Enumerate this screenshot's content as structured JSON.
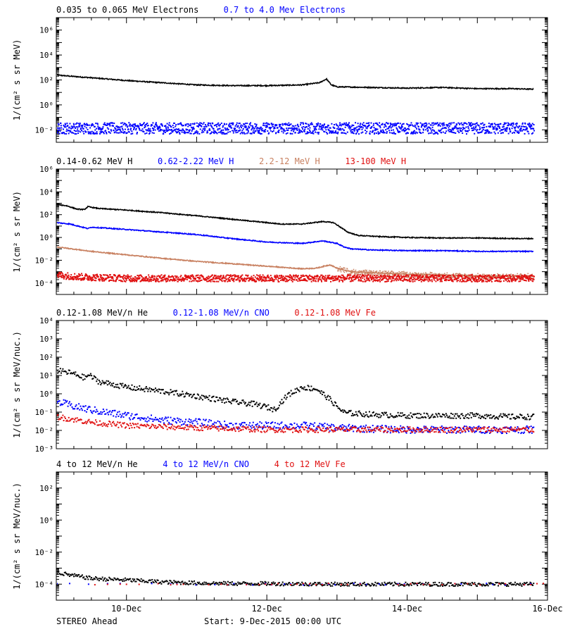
{
  "colors": {
    "black": "#000000",
    "blue": "#0000ff",
    "tan": "#c88060",
    "red": "#e01010"
  },
  "xaxis": {
    "ticks": [
      {
        "day": 1,
        "label": "10-Dec"
      },
      {
        "day": 3,
        "label": "12-Dec"
      },
      {
        "day": 5,
        "label": "14-Dec"
      },
      {
        "day": 7,
        "label": "16-Dec"
      }
    ]
  },
  "footer": {
    "spacecraft": "STEREO Ahead",
    "start": "Start:  9-Dec-2015 00:00 UTC"
  },
  "chart_data": [
    {
      "type": "scatter",
      "ylabel": "1/(cm² s sr MeV)",
      "ylim_log10": [
        -3,
        7
      ],
      "yticks": [
        {
          "e": -2,
          "label": "10⁻²"
        },
        {
          "e": 0,
          "label": "10⁰"
        },
        {
          "e": 2,
          "label": "10²"
        },
        {
          "e": 4,
          "label": "10⁴"
        },
        {
          "e": 6,
          "label": "10⁶"
        }
      ],
      "xlim_days": [
        0,
        7
      ],
      "series": [
        {
          "name": "0.035 to 0.065 MeV Electrons",
          "color": "black",
          "style": "line",
          "x": [
            0,
            0.2,
            0.5,
            1.0,
            1.5,
            2.0,
            2.5,
            3.0,
            3.5,
            3.75,
            3.85,
            3.92,
            4.0,
            4.5,
            5.0,
            5.5,
            6.0,
            6.5,
            6.8
          ],
          "y": [
            250,
            200,
            150,
            90,
            60,
            40,
            35,
            35,
            40,
            60,
            120,
            40,
            28,
            25,
            22,
            25,
            20,
            20,
            18
          ]
        },
        {
          "name": "0.7 to 4.0 Mev Electrons",
          "color": "blue",
          "style": "scatter-noise",
          "spread": 0.45,
          "x": [
            0,
            1,
            2,
            3,
            4,
            5,
            6,
            6.8
          ],
          "y": [
            0.015,
            0.015,
            0.015,
            0.015,
            0.015,
            0.015,
            0.015,
            0.015
          ]
        }
      ]
    },
    {
      "type": "scatter",
      "ylabel": "1/(cm² s sr MeV)",
      "ylim_log10": [
        -5,
        6
      ],
      "yticks": [
        {
          "e": -4,
          "label": "10⁻⁴"
        },
        {
          "e": -2,
          "label": "10⁻²"
        },
        {
          "e": 0,
          "label": "10⁰"
        },
        {
          "e": 2,
          "label": "10²"
        },
        {
          "e": 4,
          "label": "10⁴"
        },
        {
          "e": 6,
          "label": "10⁶"
        }
      ],
      "xlim_days": [
        0,
        7
      ],
      "series": [
        {
          "name": "0.14-0.62 MeV H",
          "color": "black",
          "style": "line",
          "x": [
            0,
            0.15,
            0.3,
            0.4,
            0.45,
            0.6,
            1.0,
            1.5,
            2.0,
            2.5,
            3.0,
            3.2,
            3.5,
            3.8,
            3.95,
            4.05,
            4.15,
            4.3,
            4.6,
            5.0,
            5.5,
            6.0,
            6.5,
            6.8
          ],
          "y": [
            800,
            600,
            300,
            280,
            500,
            350,
            250,
            150,
            80,
            40,
            20,
            15,
            15,
            25,
            20,
            8,
            3,
            1.5,
            1.2,
            1.0,
            0.9,
            0.9,
            0.8,
            0.8
          ]
        },
        {
          "name": "0.62-2.22 MeV H",
          "color": "blue",
          "style": "line",
          "x": [
            0,
            0.2,
            0.45,
            0.5,
            1.0,
            1.5,
            2.0,
            2.5,
            3.0,
            3.5,
            3.8,
            4.0,
            4.1,
            4.2,
            4.5,
            5.0,
            5.5,
            6.0,
            6.5,
            6.8
          ],
          "y": [
            20,
            15,
            6,
            8,
            5,
            3,
            1.8,
            0.8,
            0.4,
            0.3,
            0.5,
            0.3,
            0.15,
            0.1,
            0.08,
            0.07,
            0.07,
            0.06,
            0.06,
            0.06
          ]
        },
        {
          "name": "2.2-12 MeV H",
          "color": "tan",
          "style": "line",
          "x": [
            0,
            0.5,
            1.0,
            1.5,
            2.0,
            2.5,
            3.0,
            3.5,
            3.7,
            3.9,
            4.0,
            4.2,
            4.5,
            5.0,
            5.5,
            6.0,
            6.5,
            6.8
          ],
          "y": [
            0.15,
            0.06,
            0.03,
            0.015,
            0.008,
            0.005,
            0.003,
            0.0018,
            0.002,
            0.004,
            0.002,
            0.001,
            0.0008,
            0.0006,
            0.0005,
            0.0004,
            0.0004,
            0.0004
          ],
          "noise_after": 4.0,
          "spread": 0.25
        },
        {
          "name": "13-100 MeV H",
          "color": "red",
          "style": "scatter-noise",
          "spread": 0.3,
          "x": [
            0,
            0.3,
            1,
            2,
            3,
            4,
            5,
            6,
            6.8
          ],
          "y": [
            0.0006,
            0.0004,
            0.0003,
            0.0003,
            0.0003,
            0.0003,
            0.0003,
            0.0003,
            0.0003
          ]
        }
      ]
    },
    {
      "type": "scatter",
      "ylabel": "1/(cm² s sr MeV/nuc.)",
      "ylim_log10": [
        -3,
        4
      ],
      "yticks": [
        {
          "e": -3,
          "label": "10⁻³"
        },
        {
          "e": -2,
          "label": "10⁻²"
        },
        {
          "e": -1,
          "label": "10⁻¹"
        },
        {
          "e": 0,
          "label": "10⁰"
        },
        {
          "e": 1,
          "label": "10¹"
        },
        {
          "e": 2,
          "label": "10²"
        },
        {
          "e": 3,
          "label": "10³"
        },
        {
          "e": 4,
          "label": "10⁴"
        }
      ],
      "xlim_days": [
        0,
        7
      ],
      "series": [
        {
          "name": "0.12-1.08 MeV/n He",
          "color": "black",
          "style": "dots",
          "spread": 0.15,
          "x": [
            0,
            0.2,
            0.4,
            0.45,
            0.6,
            1.0,
            1.5,
            2.0,
            2.5,
            2.8,
            3.0,
            3.1,
            3.2,
            3.3,
            3.5,
            3.7,
            3.8,
            3.9,
            4.0,
            4.1,
            4.5,
            5.0,
            5.5,
            6.0,
            6.5,
            6.8
          ],
          "y": [
            20,
            15,
            8,
            12,
            5,
            2.5,
            1.5,
            0.8,
            0.4,
            0.3,
            0.2,
            0.15,
            0.4,
            1.0,
            2.5,
            2.0,
            1.0,
            0.5,
            0.2,
            0.1,
            0.08,
            0.07,
            0.07,
            0.07,
            0.06,
            0.06
          ]
        },
        {
          "name": "0.12-1.08 MeV/n CNO",
          "color": "blue",
          "style": "dots",
          "spread": 0.2,
          "x": [
            0,
            0.3,
            0.6,
            1.0,
            1.5,
            2.0,
            2.5,
            3.0,
            3.5,
            4.0,
            5.0,
            6.0,
            6.8
          ],
          "y": [
            0.4,
            0.2,
            0.12,
            0.07,
            0.04,
            0.03,
            0.02,
            0.02,
            0.02,
            0.015,
            0.012,
            0.012,
            0.012
          ]
        },
        {
          "name": "0.12-1.08 MeV Fe",
          "color": "red",
          "style": "dots",
          "spread": 0.15,
          "x": [
            0,
            0.5,
            1.0,
            2.0,
            3.0,
            4.0,
            5.0,
            6.0,
            6.8
          ],
          "y": [
            0.06,
            0.03,
            0.02,
            0.015,
            0.012,
            0.012,
            0.012,
            0.012,
            0.012
          ]
        }
      ]
    },
    {
      "type": "scatter",
      "ylabel": "1/(cm² s sr MeV/nuc.)",
      "ylim_log10": [
        -5,
        3
      ],
      "yticks": [
        {
          "e": -4,
          "label": "10⁻⁴"
        },
        {
          "e": -2,
          "label": "10⁻²"
        },
        {
          "e": 0,
          "label": "10⁰"
        },
        {
          "e": 2,
          "label": "10²"
        }
      ],
      "xlim_days": [
        0,
        7
      ],
      "series": [
        {
          "name": "4 to 12 MeV/n He",
          "color": "black",
          "style": "dots",
          "spread": 0.12,
          "x": [
            0,
            0.2,
            0.5,
            1.0,
            1.5,
            2.0,
            2.5,
            3.0,
            4.0,
            5.0,
            6.0,
            6.8
          ],
          "y": [
            0.0006,
            0.0004,
            0.00025,
            0.0002,
            0.00015,
            0.00013,
            0.00012,
            0.00012,
            0.00011,
            0.00011,
            0.00011,
            0.00011
          ]
        },
        {
          "name": "4 to 12 MeV/n CNO",
          "color": "blue",
          "style": "dots",
          "sparse": true,
          "spread": 0.05,
          "x": [
            0,
            7
          ],
          "y": [
            0.00011,
            0.00011
          ]
        },
        {
          "name": "4 to 12 MeV Fe",
          "color": "red",
          "style": "dots",
          "sparse": true,
          "spread": 0.05,
          "x": [
            0,
            7
          ],
          "y": [
            0.00011,
            0.00011
          ]
        }
      ]
    }
  ]
}
